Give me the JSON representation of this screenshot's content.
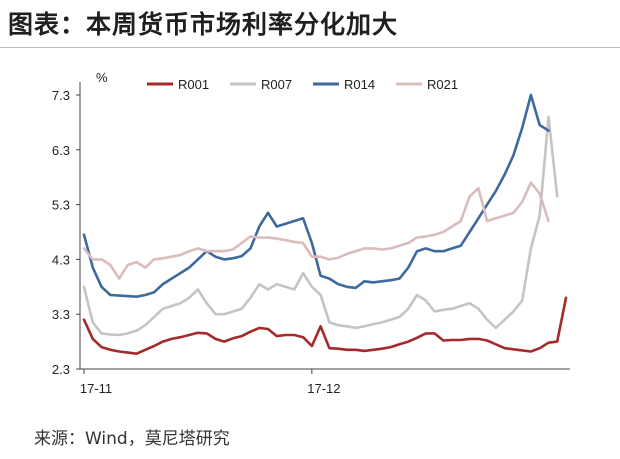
{
  "figure": {
    "title": "图表：本周货币市场利率分化加大",
    "source": "来源：Wind，莫尼塔研究"
  },
  "chart_data": {
    "type": "line",
    "title": "",
    "xlabel": "",
    "ylabel": "%",
    "ylim": [
      2.3,
      7.8
    ],
    "yticks": [
      "2.3",
      "3.3",
      "4.3",
      "5.3",
      "6.3",
      "7.3"
    ],
    "x_tick_labels": [
      "17-11",
      "17-12"
    ],
    "x_tick_index": [
      0,
      26
    ],
    "grid": false,
    "legend_position": "top",
    "series": [
      {
        "name": "R001",
        "color": "#a52a2a",
        "values": [
          3.2,
          2.85,
          2.7,
          2.65,
          2.62,
          2.6,
          2.58,
          2.65,
          2.72,
          2.8,
          2.85,
          2.88,
          2.92,
          2.96,
          2.95,
          2.85,
          2.8,
          2.86,
          2.9,
          2.98,
          3.05,
          3.03,
          2.9,
          2.92,
          2.92,
          2.88,
          2.72,
          3.08,
          2.68,
          2.67,
          2.65,
          2.65,
          2.63,
          2.65,
          2.67,
          2.7,
          2.75,
          2.8,
          2.87,
          2.95,
          2.95,
          2.82,
          2.83,
          2.83,
          2.85,
          2.85,
          2.82,
          2.75,
          2.68,
          2.66,
          2.64,
          2.62,
          2.68,
          2.78,
          2.8,
          3.6
        ]
      },
      {
        "name": "R007",
        "color": "#c4c4c4",
        "values": [
          3.8,
          3.15,
          2.95,
          2.93,
          2.92,
          2.95,
          3.0,
          3.1,
          3.25,
          3.4,
          3.45,
          3.5,
          3.6,
          3.75,
          3.5,
          3.3,
          3.3,
          3.35,
          3.4,
          3.6,
          3.85,
          3.75,
          3.85,
          3.8,
          3.75,
          4.05,
          3.8,
          3.65,
          3.15,
          3.1,
          3.08,
          3.05,
          3.08,
          3.12,
          3.15,
          3.2,
          3.25,
          3.4,
          3.65,
          3.55,
          3.35,
          3.38,
          3.4,
          3.45,
          3.5,
          3.4,
          3.2,
          3.05,
          3.2,
          3.35,
          3.55,
          4.5,
          5.1,
          6.9,
          5.45
        ]
      },
      {
        "name": "R014",
        "color": "#3d6a9e",
        "values": [
          4.75,
          4.15,
          3.8,
          3.65,
          3.64,
          3.63,
          3.62,
          3.65,
          3.7,
          3.85,
          3.95,
          4.05,
          4.15,
          4.3,
          4.45,
          4.35,
          4.3,
          4.32,
          4.36,
          4.5,
          4.9,
          5.15,
          4.9,
          4.95,
          5.0,
          5.05,
          4.6,
          4.0,
          3.95,
          3.85,
          3.8,
          3.78,
          3.9,
          3.88,
          3.9,
          3.92,
          3.95,
          4.15,
          4.45,
          4.5,
          4.45,
          4.45,
          4.5,
          4.55,
          4.8,
          5.05,
          5.3,
          5.55,
          5.85,
          6.2,
          6.7,
          7.3,
          6.75,
          6.65
        ]
      },
      {
        "name": "R021",
        "color": "#dbbcbc",
        "values": [
          4.5,
          4.3,
          4.3,
          4.2,
          3.95,
          4.2,
          4.25,
          4.15,
          4.3,
          4.32,
          4.35,
          4.38,
          4.45,
          4.5,
          4.45,
          4.45,
          4.45,
          4.48,
          4.6,
          4.72,
          4.7,
          4.7,
          4.68,
          4.65,
          4.62,
          4.6,
          4.35,
          4.35,
          4.3,
          4.33,
          4.4,
          4.45,
          4.5,
          4.5,
          4.48,
          4.5,
          4.55,
          4.6,
          4.7,
          4.72,
          4.75,
          4.8,
          4.9,
          5.0,
          5.45,
          5.6,
          5.0,
          5.05,
          5.1,
          5.15,
          5.35,
          5.7,
          5.5,
          5.0
        ]
      }
    ]
  }
}
